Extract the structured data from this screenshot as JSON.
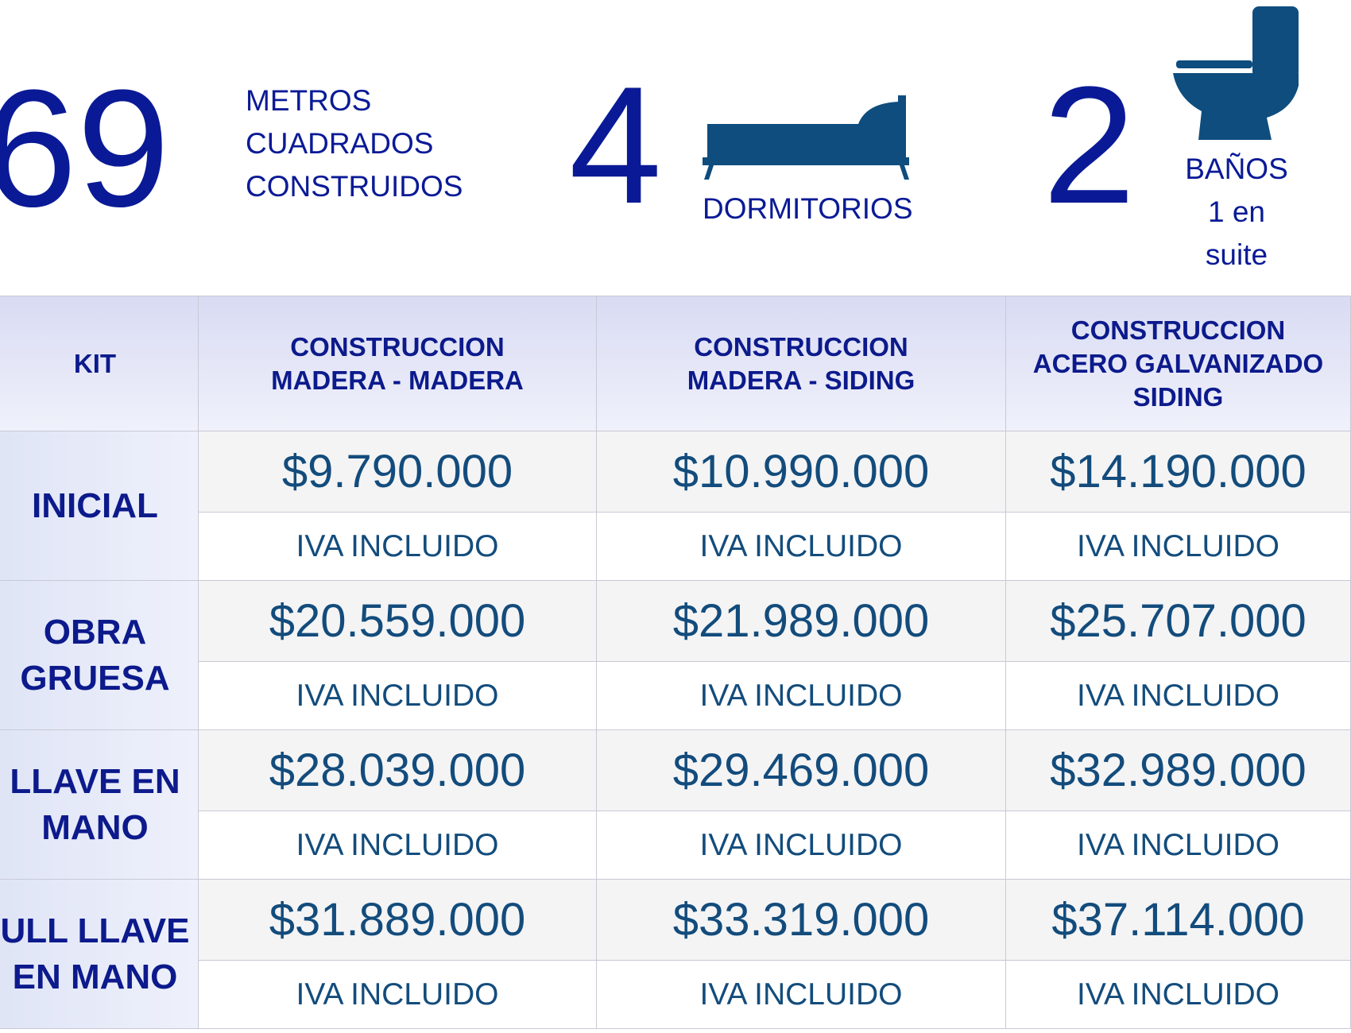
{
  "summary": {
    "area": {
      "value": "69",
      "label": [
        "METROS",
        "CUADRADOS",
        "CONSTRUIDOS"
      ]
    },
    "bedrooms": {
      "value": "4",
      "label": "DORMITORIOS"
    },
    "bathrooms": {
      "value": "2",
      "label": [
        "BAÑOS",
        "1 en",
        "suite"
      ]
    }
  },
  "table": {
    "headers": [
      [
        "KIT"
      ],
      [
        "CONSTRUCCION",
        "MADERA - MADERA"
      ],
      [
        "CONSTRUCCION",
        "MADERA - SIDING"
      ],
      [
        "CONSTRUCCION",
        "ACERO GALVANIZADO",
        "SIDING"
      ]
    ],
    "rows": [
      {
        "label": [
          "INICIAL"
        ],
        "cells": [
          {
            "price": "$9.790.000",
            "note": "IVA INCLUIDO"
          },
          {
            "price": "$10.990.000",
            "note": "IVA INCLUIDO"
          },
          {
            "price": "$14.190.000",
            "note": "IVA INCLUIDO"
          }
        ]
      },
      {
        "label": [
          "OBRA",
          "GRUESA"
        ],
        "cells": [
          {
            "price": "$20.559.000",
            "note": "IVA INCLUIDO"
          },
          {
            "price": "$21.989.000",
            "note": "IVA INCLUIDO"
          },
          {
            "price": "$25.707.000",
            "note": "IVA INCLUIDO"
          }
        ]
      },
      {
        "label": [
          "LLAVE EN",
          "MANO"
        ],
        "cells": [
          {
            "price": "$28.039.000",
            "note": "IVA INCLUIDO"
          },
          {
            "price": "$29.469.000",
            "note": "IVA INCLUIDO"
          },
          {
            "price": "$32.989.000",
            "note": "IVA INCLUIDO"
          }
        ]
      },
      {
        "label": [
          "ULL LLAVE",
          "EN MANO"
        ],
        "cells": [
          {
            "price": "$31.889.000",
            "note": "IVA INCLUIDO"
          },
          {
            "price": "$33.319.000",
            "note": "IVA INCLUIDO"
          },
          {
            "price": "$37.114.000",
            "note": "IVA INCLUIDO"
          }
        ]
      }
    ]
  }
}
